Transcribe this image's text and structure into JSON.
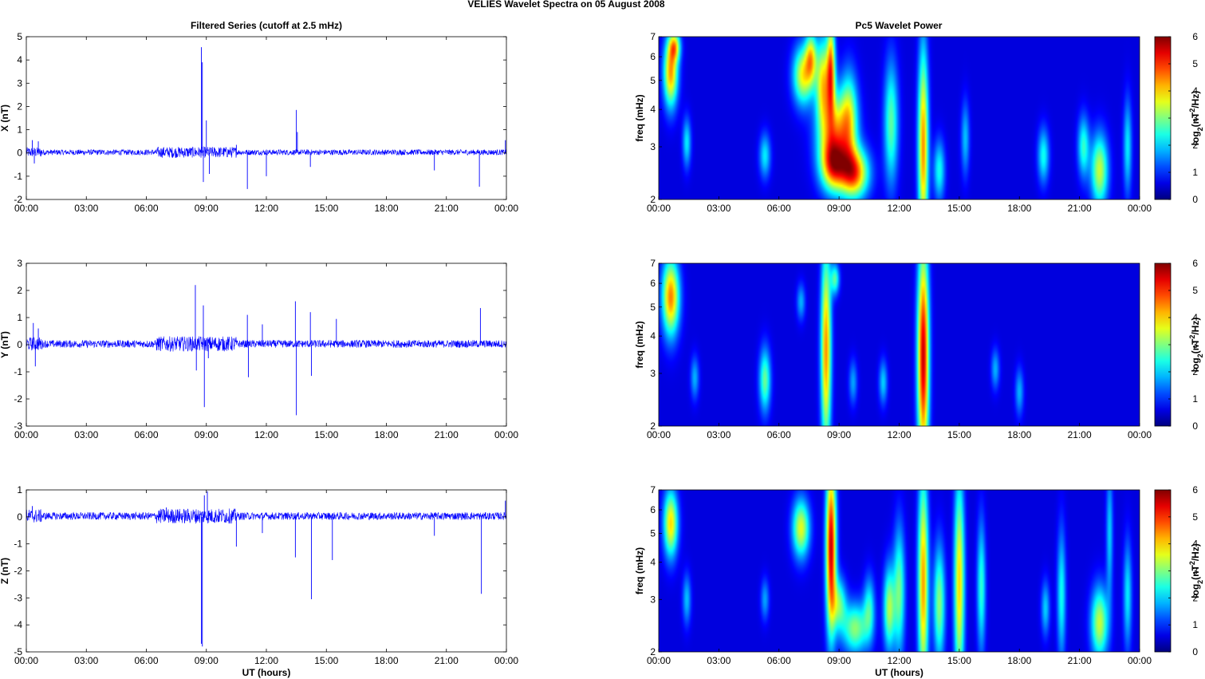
{
  "figure": {
    "title": "VELIES Wavelet Spectra on 05 August    2008",
    "left_title": "Filtered Series (cutoff at 2.5 mHz)",
    "right_title": "Pc5 Wavelet Power",
    "xlabel": "UT (hours)"
  },
  "colors": {
    "trace": "#0000ff",
    "background_dark": "#00008f"
  },
  "chart_data": [
    {
      "type": "line",
      "ylabel": "X (nT)",
      "ylim": [
        -2,
        5
      ],
      "yticks": [
        "5",
        "4",
        "3",
        "2",
        "1",
        "0",
        "-1",
        "-2"
      ],
      "xticks": [
        "00:00",
        "03:00",
        "06:00",
        "09:00",
        "12:00",
        "15:00",
        "18:00",
        "21:00",
        "00:00"
      ],
      "xlim_hours": [
        0,
        24
      ],
      "noise_amplitude": 0.12,
      "spikes": [
        {
          "t": 0.3,
          "v": 0.55
        },
        {
          "t": 0.4,
          "v": -0.45
        },
        {
          "t": 0.6,
          "v": 0.5
        },
        {
          "t": 8.75,
          "v": 4.55
        },
        {
          "t": 8.8,
          "v": 3.9
        },
        {
          "t": 8.85,
          "v": -1.25
        },
        {
          "t": 9.0,
          "v": 1.4
        },
        {
          "t": 9.15,
          "v": -0.9
        },
        {
          "t": 10.5,
          "v": 0.35
        },
        {
          "t": 11.05,
          "v": -1.55
        },
        {
          "t": 12.0,
          "v": -1.0
        },
        {
          "t": 13.5,
          "v": 1.85
        },
        {
          "t": 13.55,
          "v": 0.9
        },
        {
          "t": 14.2,
          "v": -0.6
        },
        {
          "t": 20.4,
          "v": -0.75
        },
        {
          "t": 22.65,
          "v": -1.45
        },
        {
          "t": 23.95,
          "v": 0.55
        }
      ]
    },
    {
      "type": "line",
      "ylabel": "Y (nT)",
      "ylim": [
        -3,
        3
      ],
      "yticks": [
        "3",
        "2",
        "1",
        "0",
        "-1",
        "-2",
        "-3"
      ],
      "xticks": [
        "00:00",
        "03:00",
        "06:00",
        "09:00",
        "12:00",
        "15:00",
        "18:00",
        "21:00",
        "00:00"
      ],
      "xlim_hours": [
        0,
        24
      ],
      "noise_amplitude": 0.14,
      "spikes": [
        {
          "t": 0.35,
          "v": 0.8
        },
        {
          "t": 0.45,
          "v": -0.8
        },
        {
          "t": 0.6,
          "v": 0.6
        },
        {
          "t": 8.45,
          "v": 2.2
        },
        {
          "t": 8.5,
          "v": -0.95
        },
        {
          "t": 8.85,
          "v": 1.45
        },
        {
          "t": 8.9,
          "v": -2.3
        },
        {
          "t": 9.1,
          "v": -0.5
        },
        {
          "t": 11.05,
          "v": 1.1
        },
        {
          "t": 11.1,
          "v": -1.2
        },
        {
          "t": 11.8,
          "v": 0.75
        },
        {
          "t": 13.45,
          "v": 1.6
        },
        {
          "t": 13.5,
          "v": -2.6
        },
        {
          "t": 14.2,
          "v": 1.2
        },
        {
          "t": 14.25,
          "v": -1.15
        },
        {
          "t": 15.5,
          "v": 0.95
        },
        {
          "t": 22.7,
          "v": 1.35
        }
      ]
    },
    {
      "type": "line",
      "ylabel": "Z (nT)",
      "ylim": [
        -5,
        1
      ],
      "yticks": [
        "1",
        "0",
        "-1",
        "-2",
        "-3",
        "-4",
        "-5"
      ],
      "xticks": [
        "00:00",
        "03:00",
        "06:00",
        "09:00",
        "12:00",
        "15:00",
        "18:00",
        "21:00",
        "00:00"
      ],
      "xlim_hours": [
        0,
        24
      ],
      "noise_amplitude": 0.14,
      "spikes": [
        {
          "t": 0.3,
          "v": 0.4
        },
        {
          "t": 7.0,
          "v": 0.35
        },
        {
          "t": 8.75,
          "v": -4.7
        },
        {
          "t": 8.8,
          "v": -4.8
        },
        {
          "t": 8.9,
          "v": 0.8
        },
        {
          "t": 9.05,
          "v": 0.95
        },
        {
          "t": 10.5,
          "v": -1.1
        },
        {
          "t": 11.8,
          "v": -0.6
        },
        {
          "t": 13.45,
          "v": -1.5
        },
        {
          "t": 14.25,
          "v": -3.05
        },
        {
          "t": 15.3,
          "v": -1.6
        },
        {
          "t": 20.4,
          "v": -0.7
        },
        {
          "t": 22.75,
          "v": -2.85
        },
        {
          "t": 23.95,
          "v": 0.6
        }
      ]
    },
    {
      "type": "heatmap",
      "ylabel": "freq (mHz)",
      "yscale": "log",
      "ylim": [
        2,
        7
      ],
      "yticks": [
        "7",
        "6",
        "5",
        "4",
        "3",
        "2"
      ],
      "xticks": [
        "00:00",
        "03:00",
        "06:00",
        "09:00",
        "12:00",
        "15:00",
        "18:00",
        "21:00",
        "00:00"
      ],
      "xlim_hours": [
        0,
        24
      ],
      "colorbar_label": "log2(nT2/Hz)",
      "colorbar_ticks": [
        "6",
        "5",
        "4",
        "3",
        "2",
        "1",
        "0"
      ],
      "colorbar_range": [
        0,
        6
      ],
      "blobs": [
        {
          "t": 0.6,
          "f": 5.3,
          "w": 0.25,
          "h": 1.2,
          "v": 4.2
        },
        {
          "t": 0.8,
          "f": 6.5,
          "w": 0.2,
          "h": 0.6,
          "v": 3.0
        },
        {
          "t": 1.4,
          "f": 3.1,
          "w": 0.15,
          "h": 0.5,
          "v": 1.8
        },
        {
          "t": 5.3,
          "f": 2.8,
          "w": 0.2,
          "h": 0.4,
          "v": 1.8
        },
        {
          "t": 7.2,
          "f": 5.2,
          "w": 0.35,
          "h": 1.0,
          "v": 3.5
        },
        {
          "t": 7.6,
          "f": 6.0,
          "w": 0.2,
          "h": 1.0,
          "v": 3.0
        },
        {
          "t": 8.2,
          "f": 5.0,
          "w": 0.25,
          "h": 1.5,
          "v": 3.4
        },
        {
          "t": 8.6,
          "f": 5.5,
          "w": 0.15,
          "h": 1.8,
          "v": 4.0
        },
        {
          "t": 8.8,
          "f": 3.4,
          "w": 0.6,
          "h": 0.9,
          "v": 3.5
        },
        {
          "t": 8.7,
          "f": 2.6,
          "w": 0.45,
          "h": 0.45,
          "v": 4.0
        },
        {
          "t": 9.75,
          "f": 2.45,
          "w": 0.5,
          "h": 0.4,
          "v": 4.6
        },
        {
          "t": 9.5,
          "f": 3.8,
          "w": 0.3,
          "h": 1.2,
          "v": 2.5
        },
        {
          "t": 11.6,
          "f": 3.6,
          "w": 0.25,
          "h": 1.6,
          "v": 2.5
        },
        {
          "t": 13.2,
          "f": 3.0,
          "w": 0.18,
          "h": 2.4,
          "v": 4.3
        },
        {
          "t": 14.0,
          "f": 2.5,
          "w": 0.2,
          "h": 0.5,
          "v": 2.0
        },
        {
          "t": 15.3,
          "f": 3.2,
          "w": 0.15,
          "h": 0.8,
          "v": 1.5
        },
        {
          "t": 19.2,
          "f": 2.8,
          "w": 0.2,
          "h": 0.5,
          "v": 2.0
        },
        {
          "t": 21.2,
          "f": 3.0,
          "w": 0.2,
          "h": 0.6,
          "v": 2.2
        },
        {
          "t": 22.0,
          "f": 2.5,
          "w": 0.3,
          "h": 0.6,
          "v": 3.2
        },
        {
          "t": 23.4,
          "f": 3.0,
          "w": 0.15,
          "h": 1.0,
          "v": 1.8
        }
      ]
    },
    {
      "type": "heatmap",
      "ylabel": "freq (mHz)",
      "yscale": "log",
      "ylim": [
        2,
        7
      ],
      "yticks": [
        "7",
        "6",
        "5",
        "4",
        "3",
        "2"
      ],
      "xticks": [
        "00:00",
        "03:00",
        "06:00",
        "09:00",
        "12:00",
        "15:00",
        "18:00",
        "21:00",
        "00:00"
      ],
      "xlim_hours": [
        0,
        24
      ],
      "colorbar_label": "log2(nT2/Hz)",
      "colorbar_ticks": [
        "6",
        "5",
        "4",
        "3",
        "2",
        "1",
        "0"
      ],
      "colorbar_range": [
        0,
        6
      ],
      "blobs": [
        {
          "t": 0.6,
          "f": 5.4,
          "w": 0.3,
          "h": 1.4,
          "v": 4.4
        },
        {
          "t": 1.8,
          "f": 2.9,
          "w": 0.15,
          "h": 0.4,
          "v": 1.4
        },
        {
          "t": 5.3,
          "f": 2.85,
          "w": 0.2,
          "h": 0.6,
          "v": 2.6
        },
        {
          "t": 7.1,
          "f": 5.2,
          "w": 0.15,
          "h": 0.6,
          "v": 1.4
        },
        {
          "t": 8.35,
          "f": 3.6,
          "w": 0.18,
          "h": 3.0,
          "v": 4.3
        },
        {
          "t": 8.8,
          "f": 6.2,
          "w": 0.15,
          "h": 0.6,
          "v": 2.4
        },
        {
          "t": 9.7,
          "f": 2.8,
          "w": 0.15,
          "h": 0.4,
          "v": 1.3
        },
        {
          "t": 11.2,
          "f": 2.8,
          "w": 0.15,
          "h": 0.4,
          "v": 1.6
        },
        {
          "t": 13.2,
          "f": 3.4,
          "w": 0.2,
          "h": 3.2,
          "v": 5.6
        },
        {
          "t": 16.8,
          "f": 3.1,
          "w": 0.15,
          "h": 0.4,
          "v": 1.4
        },
        {
          "t": 18.0,
          "f": 2.6,
          "w": 0.15,
          "h": 0.4,
          "v": 1.4
        }
      ]
    },
    {
      "type": "heatmap",
      "ylabel": "freq (mHz)",
      "yscale": "log",
      "ylim": [
        2,
        7
      ],
      "yticks": [
        "7",
        "6",
        "5",
        "4",
        "3",
        "2"
      ],
      "xticks": [
        "00:00",
        "03:00",
        "06:00",
        "09:00",
        "12:00",
        "15:00",
        "18:00",
        "21:00",
        "00:00"
      ],
      "xlim_hours": [
        0,
        24
      ],
      "colorbar_label": "log2(nT2/Hz)",
      "colorbar_ticks": [
        "6",
        "5",
        "4",
        "3",
        "2",
        "1",
        "0"
      ],
      "colorbar_range": [
        0,
        6
      ],
      "blobs": [
        {
          "t": 0.6,
          "f": 5.4,
          "w": 0.25,
          "h": 1.2,
          "v": 3.8
        },
        {
          "t": 1.4,
          "f": 3.0,
          "w": 0.15,
          "h": 0.5,
          "v": 1.5
        },
        {
          "t": 5.3,
          "f": 3.0,
          "w": 0.15,
          "h": 0.4,
          "v": 1.3
        },
        {
          "t": 7.1,
          "f": 5.2,
          "w": 0.3,
          "h": 1.0,
          "v": 3.4
        },
        {
          "t": 8.6,
          "f": 4.5,
          "w": 0.18,
          "h": 3.0,
          "v": 5.6
        },
        {
          "t": 9.0,
          "f": 2.9,
          "w": 0.25,
          "h": 0.5,
          "v": 2.4
        },
        {
          "t": 9.8,
          "f": 2.4,
          "w": 0.45,
          "h": 0.4,
          "v": 2.8
        },
        {
          "t": 10.5,
          "f": 2.8,
          "w": 0.2,
          "h": 0.6,
          "v": 2.0
        },
        {
          "t": 11.5,
          "f": 2.8,
          "w": 0.2,
          "h": 0.8,
          "v": 3.0
        },
        {
          "t": 12.0,
          "f": 3.2,
          "w": 0.2,
          "h": 1.5,
          "v": 2.6
        },
        {
          "t": 13.2,
          "f": 3.4,
          "w": 0.18,
          "h": 3.2,
          "v": 4.2
        },
        {
          "t": 14.0,
          "f": 2.9,
          "w": 0.2,
          "h": 1.2,
          "v": 2.8
        },
        {
          "t": 15.0,
          "f": 3.4,
          "w": 0.18,
          "h": 3.0,
          "v": 3.8
        },
        {
          "t": 16.1,
          "f": 3.3,
          "w": 0.15,
          "h": 1.6,
          "v": 2.2
        },
        {
          "t": 19.3,
          "f": 2.8,
          "w": 0.15,
          "h": 0.5,
          "v": 1.6
        },
        {
          "t": 20.1,
          "f": 3.1,
          "w": 0.15,
          "h": 1.5,
          "v": 2.0
        },
        {
          "t": 22.0,
          "f": 2.5,
          "w": 0.3,
          "h": 0.6,
          "v": 3.2
        },
        {
          "t": 22.5,
          "f": 5.0,
          "w": 0.12,
          "h": 2.5,
          "v": 1.6
        },
        {
          "t": 23.4,
          "f": 3.1,
          "w": 0.15,
          "h": 1.2,
          "v": 1.8
        }
      ]
    }
  ]
}
